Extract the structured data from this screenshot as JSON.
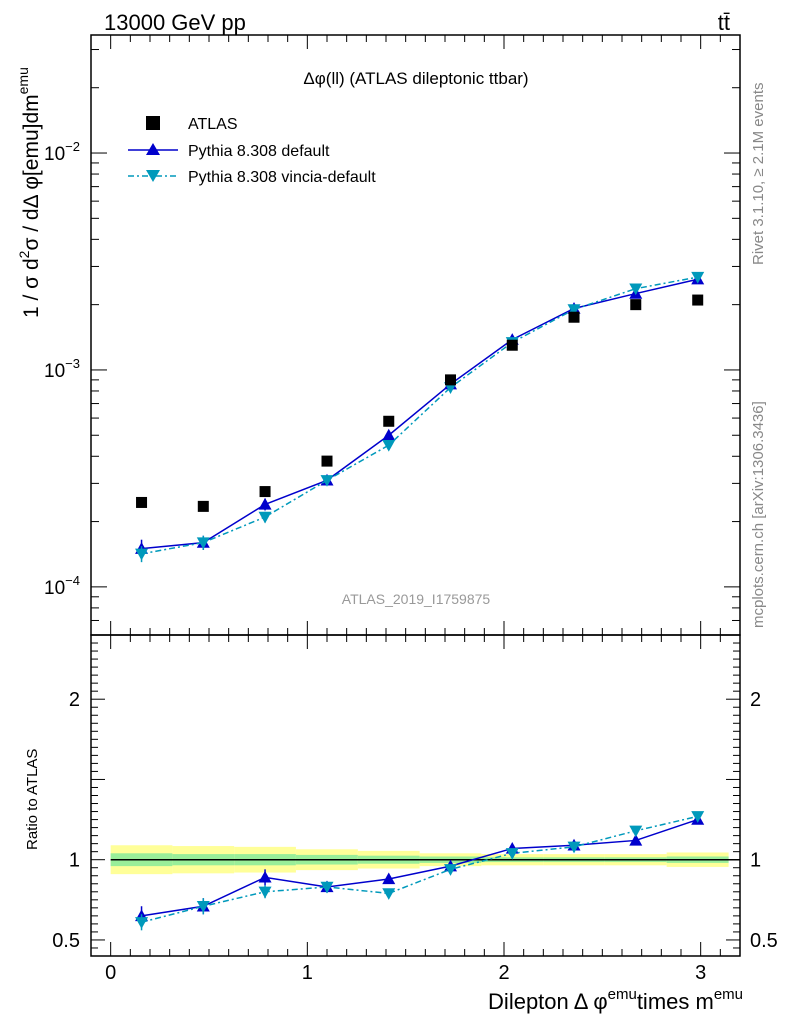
{
  "header": {
    "left": "13000 GeV pp",
    "right": "tt̄"
  },
  "side_labels": {
    "rivet": "Rivet 3.1.10, ≥ 2.1M events",
    "mcplots": "mcplots.cern.ch [arXiv:1306.3436]"
  },
  "colors": {
    "data": "#000000",
    "default": "#0000cc",
    "vincia": "#0099bb",
    "band_inner": "#99ee99",
    "band_outer": "#ffff99"
  },
  "chart_data": {
    "type": "line",
    "title": "Δφ(ll) (ATLAS dileptonic ttbar)",
    "analysis_label": "ATLAS_2019_I1759875",
    "xlabel_prefix": "Dilepton",
    "xlabel_delta": "Δ φ",
    "xlabel_sup1": "emu",
    "xlabel_times": "times m",
    "xlabel_sup2": "emu",
    "ylabel_parts": {
      "a": "1 / σ  d",
      "b": "2",
      "c": "σ / dΔ φ[emu]dm",
      "d": "emu"
    },
    "ratio_ylabel": "Ratio to ATLAS",
    "xlim": [
      -0.1,
      3.2
    ],
    "ylim": [
      6e-05,
      0.035
    ],
    "ylog": true,
    "ratio_ylim": [
      0.4,
      2.4
    ],
    "x_ticks": [
      0,
      1,
      2,
      3
    ],
    "x_tick_labels": [
      "0",
      "1",
      "2",
      "3"
    ],
    "y_ticks": [
      0.0001,
      0.001,
      0.01
    ],
    "y_tick_labels": [
      {
        "base": "10",
        "exp": "−4"
      },
      {
        "base": "10",
        "exp": "−3"
      },
      {
        "base": "10",
        "exp": "−2"
      }
    ],
    "ratio_ticks": [
      0.5,
      1,
      2
    ],
    "ratio_tick_labels": [
      "0.5",
      "1",
      "2"
    ],
    "bin_edges": [
      0,
      0.314,
      0.628,
      0.942,
      1.257,
      1.571,
      1.885,
      2.199,
      2.513,
      2.827,
      3.142
    ],
    "x": [
      0.157,
      0.471,
      0.785,
      1.1,
      1.414,
      1.728,
      2.042,
      2.356,
      2.67,
      2.985
    ],
    "series": [
      {
        "name": "ATLAS",
        "style": "data",
        "values": [
          0.000245,
          0.000235,
          0.000275,
          0.00038,
          0.00058,
          0.0009,
          0.0013,
          0.00175,
          0.002,
          0.0021
        ],
        "ratio": [
          1,
          1,
          1,
          1,
          1,
          1,
          1,
          1,
          1,
          1
        ],
        "band_inner": [
          0.04,
          0.035,
          0.035,
          0.03,
          0.025,
          0.02,
          0.015,
          0.015,
          0.015,
          0.02
        ],
        "band_outer": [
          0.09,
          0.085,
          0.08,
          0.065,
          0.055,
          0.04,
          0.035,
          0.035,
          0.035,
          0.045
        ]
      },
      {
        "name": "Pythia 8.308 default",
        "style": "default",
        "values": [
          0.00015,
          0.00016,
          0.00024,
          0.00031,
          0.0005,
          0.00086,
          0.00138,
          0.00192,
          0.00225,
          0.00262
        ],
        "errors": [
          1.5e-05,
          1.2e-05,
          1.5e-05,
          1.5e-05,
          2e-05,
          3e-05,
          4e-05,
          5e-05,
          5e-05,
          6e-05
        ],
        "ratio": [
          0.65,
          0.71,
          0.89,
          0.83,
          0.88,
          0.96,
          1.07,
          1.09,
          1.12,
          1.25
        ],
        "ratio_errors": [
          0.06,
          0.05,
          0.05,
          0.035,
          0.03,
          0.025,
          0.02,
          0.02,
          0.02,
          0.02
        ]
      },
      {
        "name": "Pythia 8.308 vincia-default",
        "style": "vincia",
        "values": [
          0.000142,
          0.00016,
          0.00021,
          0.00031,
          0.00045,
          0.00083,
          0.00134,
          0.0019,
          0.00237,
          0.00268
        ],
        "errors": [
          1.2e-05,
          1.2e-05,
          1.2e-05,
          1.5e-05,
          2e-05,
          3e-05,
          4e-05,
          5e-05,
          5e-05,
          6e-05
        ],
        "ratio": [
          0.61,
          0.71,
          0.8,
          0.83,
          0.79,
          0.94,
          1.04,
          1.08,
          1.18,
          1.27
        ],
        "ratio_errors": [
          0.05,
          0.05,
          0.04,
          0.035,
          0.03,
          0.025,
          0.02,
          0.02,
          0.02,
          0.02
        ]
      }
    ]
  }
}
